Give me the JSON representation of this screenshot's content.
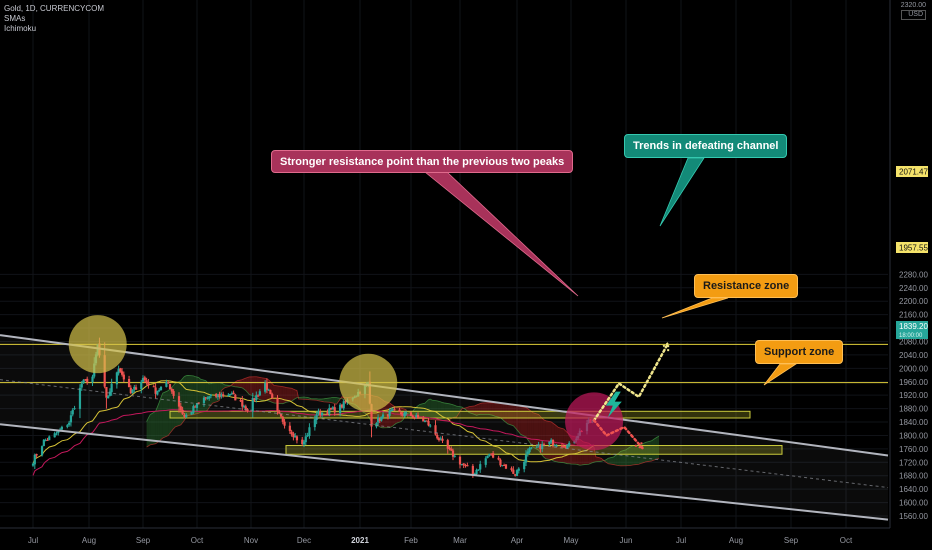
{
  "legend": {
    "symbol": "Gold, 1D, CURRENCYCOM",
    "indicator1": "SMAs",
    "indicator2": "Ichimoku"
  },
  "currency": {
    "top": "2320.00",
    "unit": "USD"
  },
  "annotations": {
    "stronger": "Stronger resistance point than the previous two peaks",
    "trends": "Trends in defeating channel",
    "resistance": "Resistance zone",
    "support": "Support zone"
  },
  "price_tags": {
    "upper": "2071.47",
    "middle": "1957.55",
    "current": "1839.20",
    "current_sub": "18:00:00"
  },
  "colors": {
    "background": "#000000",
    "up": "#26a69a",
    "down": "#ef5350",
    "zone": "#b5b52a",
    "cloud_up": "#2e7d32",
    "cloud_down": "#b71c1c",
    "circle_yellow": "#d4c24a",
    "circle_red": "#c2185b",
    "channel": "#b2b5be"
  },
  "chart_data": {
    "type": "candlestick",
    "title": "Gold, 1D, CURRENCYCOM",
    "y_axis_ticks": [
      2280,
      2240,
      2200,
      2160,
      2120,
      2080,
      2040,
      2000,
      1960,
      1920,
      1880,
      1840,
      1800,
      1760,
      1720,
      1680,
      1640,
      1600,
      1560
    ],
    "x_axis_ticks": [
      "Jul",
      "Aug",
      "Sep",
      "Oct",
      "Nov",
      "Dec",
      "2021",
      "Feb",
      "Mar",
      "Apr",
      "May",
      "Jun",
      "Jul",
      "Aug",
      "Sep",
      "Oct"
    ],
    "ylim": [
      1545,
      2320
    ],
    "price_path": [
      [
        "2020-07-01",
        1725
      ],
      [
        "2020-07-07",
        1783
      ],
      [
        "2020-07-14",
        1805
      ],
      [
        "2020-07-21",
        1840
      ],
      [
        "2020-07-28",
        1955
      ],
      [
        "2020-08-03",
        1975
      ],
      [
        "2020-08-06",
        2070
      ],
      [
        "2020-08-11",
        1905
      ],
      [
        "2020-08-18",
        2005
      ],
      [
        "2020-08-25",
        1925
      ],
      [
        "2020-09-01",
        1970
      ],
      [
        "2020-09-08",
        1932
      ],
      [
        "2020-09-15",
        1955
      ],
      [
        "2020-09-24",
        1855
      ],
      [
        "2020-10-05",
        1910
      ],
      [
        "2020-10-20",
        1925
      ],
      [
        "2020-10-30",
        1880
      ],
      [
        "2020-11-09",
        1955
      ],
      [
        "2020-11-16",
        1865
      ],
      [
        "2020-11-30",
        1770
      ],
      [
        "2020-12-08",
        1865
      ],
      [
        "2020-12-20",
        1880
      ],
      [
        "2021-01-06",
        1955
      ],
      [
        "2021-01-08",
        1835
      ],
      [
        "2021-01-20",
        1870
      ],
      [
        "2021-02-01",
        1860
      ],
      [
        "2021-02-10",
        1840
      ],
      [
        "2021-02-19",
        1775
      ],
      [
        "2021-03-01",
        1720
      ],
      [
        "2021-03-08",
        1685
      ],
      [
        "2021-03-17",
        1745
      ],
      [
        "2021-03-31",
        1685
      ],
      [
        "2021-04-08",
        1755
      ],
      [
        "2021-04-20",
        1780
      ],
      [
        "2021-04-30",
        1770
      ],
      [
        "2021-05-10",
        1838
      ],
      [
        "2021-05-14",
        1839
      ]
    ],
    "horizontal_levels": [
      2071.47,
      1957.55
    ],
    "resistance_zone": [
      1852,
      1872
    ],
    "support_zone": [
      1744,
      1770
    ],
    "channel_lines": [
      {
        "name": "upper",
        "from": [
          "2020-05-15",
          2120
        ],
        "to": [
          "2021-10-31",
          1735
        ]
      },
      {
        "name": "lower",
        "from": [
          "2020-05-15",
          1850
        ],
        "to": [
          "2021-10-31",
          1545
        ]
      }
    ],
    "projections": [
      {
        "color": "yellow",
        "points": [
          [
            "2021-05-14",
            1845
          ],
          [
            "2021-05-28",
            1955
          ],
          [
            "2021-06-08",
            1915
          ],
          [
            "2021-06-24",
            2075
          ]
        ]
      },
      {
        "color": "red",
        "points": [
          [
            "2021-05-14",
            1845
          ],
          [
            "2021-05-21",
            1800
          ],
          [
            "2021-05-31",
            1825
          ],
          [
            "2021-06-10",
            1762
          ]
        ]
      }
    ]
  }
}
